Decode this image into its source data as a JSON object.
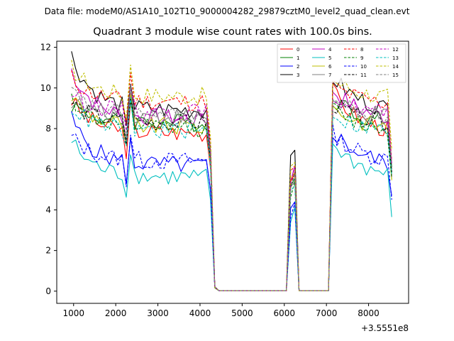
{
  "figure": {
    "suptitle": "Data file: modeM0/AS1A10_102T10_9000004282_29879cztM0_level2_quad_clean.evt"
  },
  "chart_data": {
    "type": "line",
    "title": "Quadrant 3 module wise count rates with 100.0s bins.",
    "xlabel": "",
    "ylabel": "",
    "x_offset_label": "+3.5551e8",
    "xlim": [
      600,
      8950
    ],
    "ylim": [
      -0.6,
      12.3
    ],
    "xticks": [
      1000,
      2000,
      3000,
      4000,
      5000,
      6000,
      7000,
      8000
    ],
    "yticks": [
      0,
      2,
      4,
      6,
      8,
      10,
      12
    ],
    "legend_position": "top-right",
    "x": [
      950,
      1050,
      1150,
      1250,
      1350,
      1450,
      1550,
      1650,
      1750,
      1850,
      1950,
      2050,
      2150,
      2250,
      2350,
      2450,
      2550,
      2650,
      2750,
      2850,
      2950,
      3050,
      3150,
      3250,
      3350,
      3450,
      3550,
      3650,
      3750,
      3850,
      3950,
      4050,
      4150,
      4250,
      4350,
      4450,
      4550,
      4650,
      4750,
      4850,
      4950,
      5050,
      5150,
      5250,
      5350,
      5450,
      5550,
      5650,
      5750,
      5850,
      5950,
      6050,
      6150,
      6250,
      6350,
      6450,
      6550,
      6650,
      6750,
      6850,
      6950,
      7050,
      7150,
      7250,
      7350,
      7450,
      7550,
      7650,
      7750,
      7850,
      7950,
      8050,
      8150,
      8250,
      8350,
      8450,
      8550
    ],
    "gaps": {
      "saa1": {
        "from": 4310,
        "to": 6060
      },
      "bump": {
        "center": 6200
      },
      "saa2": {
        "from": 6330,
        "to": 7060
      }
    },
    "series": [
      {
        "name": "0",
        "color": "#ff0000",
        "dash": false,
        "level": 7.8,
        "start": 9.4,
        "bump": 5.9,
        "recover": 10.0
      },
      {
        "name": "1",
        "color": "#008000",
        "dash": false,
        "level": 8.3,
        "start": 9.2,
        "bump": 5.6,
        "recover": 9.7
      },
      {
        "name": "2",
        "color": "#0000ff",
        "dash": false,
        "level": 6.2,
        "start": 8.5,
        "bump": 4.4,
        "recover": 8.0
      },
      {
        "name": "3",
        "color": "#000000",
        "dash": false,
        "level": 8.9,
        "start": 11.6,
        "bump": 6.9,
        "recover": 10.7
      },
      {
        "name": "4",
        "color": "#c000c0",
        "dash": false,
        "level": 8.5,
        "start": 10.9,
        "bump": 6.1,
        "recover": 10.1
      },
      {
        "name": "5",
        "color": "#00bfbf",
        "dash": false,
        "level": 5.6,
        "start": 7.4,
        "bump": 4.0,
        "recover": 7.4
      },
      {
        "name": "6",
        "color": "#bfbf00",
        "dash": false,
        "level": 8.1,
        "start": 9.6,
        "bump": 6.0,
        "recover": 9.2
      },
      {
        "name": "7",
        "color": "#808080",
        "dash": false,
        "level": 8.6,
        "start": 9.4,
        "bump": 5.5,
        "recover": 9.4
      },
      {
        "name": "8",
        "color": "#ff0000",
        "dash": true,
        "level": 9.3,
        "start": 10.5,
        "bump": 6.2,
        "recover": 10.3
      },
      {
        "name": "9",
        "color": "#008000",
        "dash": true,
        "level": 8.0,
        "start": 9.5,
        "bump": 5.4,
        "recover": 9.1
      },
      {
        "name": "10",
        "color": "#0000ff",
        "dash": true,
        "level": 6.4,
        "start": 7.6,
        "bump": 4.3,
        "recover": 7.9
      },
      {
        "name": "11",
        "color": "#000000",
        "dash": true,
        "level": 8.3,
        "start": 9.3,
        "bump": 5.7,
        "recover": 9.4
      },
      {
        "name": "12",
        "color": "#c000c0",
        "dash": true,
        "level": 8.8,
        "start": 9.8,
        "bump": 5.9,
        "recover": 9.8
      },
      {
        "name": "13",
        "color": "#00bfbf",
        "dash": true,
        "level": 7.9,
        "start": 9.1,
        "bump": 5.3,
        "recover": 8.9
      },
      {
        "name": "14",
        "color": "#bfbf00",
        "dash": true,
        "level": 9.6,
        "start": 11.0,
        "bump": 6.4,
        "recover": 10.6
      },
      {
        "name": "15",
        "color": "#808080",
        "dash": true,
        "level": 8.6,
        "start": 9.8,
        "bump": 5.8,
        "recover": 9.6
      }
    ]
  }
}
